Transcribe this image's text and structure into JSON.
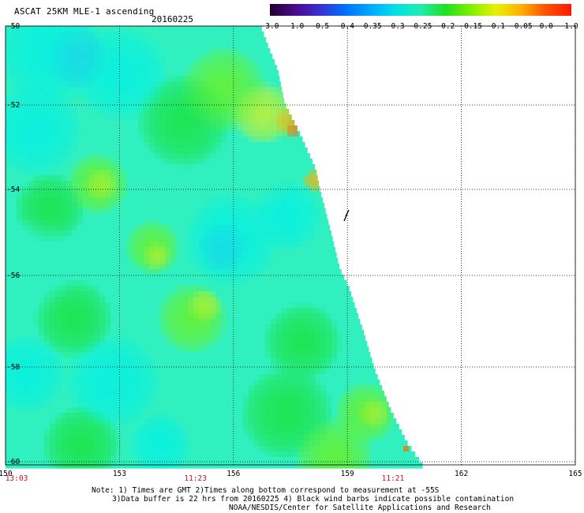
{
  "header": {
    "title": "ASCAT 25KM MLE-1 ascending",
    "date": "20160225"
  },
  "colorbar": {
    "labels": [
      "-3.0",
      "-1.0",
      "-0.5",
      "-0.4",
      "-0.35",
      "-0.3",
      "-0.25",
      "-0.2",
      "-0.15",
      "-0.1",
      "-0.05",
      "0.0",
      "1.0"
    ],
    "colors": [
      "#200030",
      "#4a0a8a",
      "#3a30d0",
      "#0070ff",
      "#00a8ff",
      "#00e0e8",
      "#20ecb0",
      "#20e020",
      "#80f000",
      "#e8f000",
      "#ffb000",
      "#ff5000",
      "#ff1800"
    ]
  },
  "map": {
    "lon_ticks": [
      "150",
      "153",
      "156",
      "159",
      "162",
      "165"
    ],
    "lat_ticks": [
      "-50",
      "-52",
      "-54",
      "-56",
      "-58",
      "-60"
    ],
    "times": [
      {
        "label": "13:03",
        "lon": "150"
      },
      {
        "label": "11:23",
        "lon": "155"
      },
      {
        "label": "11:21",
        "lon": "160.2"
      }
    ],
    "palette": {
      "cyan": "#00f0e6",
      "aqua": "#30f0c0",
      "green": "#18e030",
      "lime": "#70f018",
      "yellow": "#d8f020",
      "orange": "#ffb000",
      "orange_dark": "#ff6a00",
      "blue": "#20c8f0"
    }
  },
  "notes": {
    "line1": "Note: 1) Times are GMT 2)Times along bottom correspond to measurement at -55S",
    "line2": "3)Data buffer is 22 hrs from 20160225 4) Black wind barbs indicate possible contamination",
    "line3": "NOAA/NESDIS/Center for Satellite Applications and Research"
  }
}
